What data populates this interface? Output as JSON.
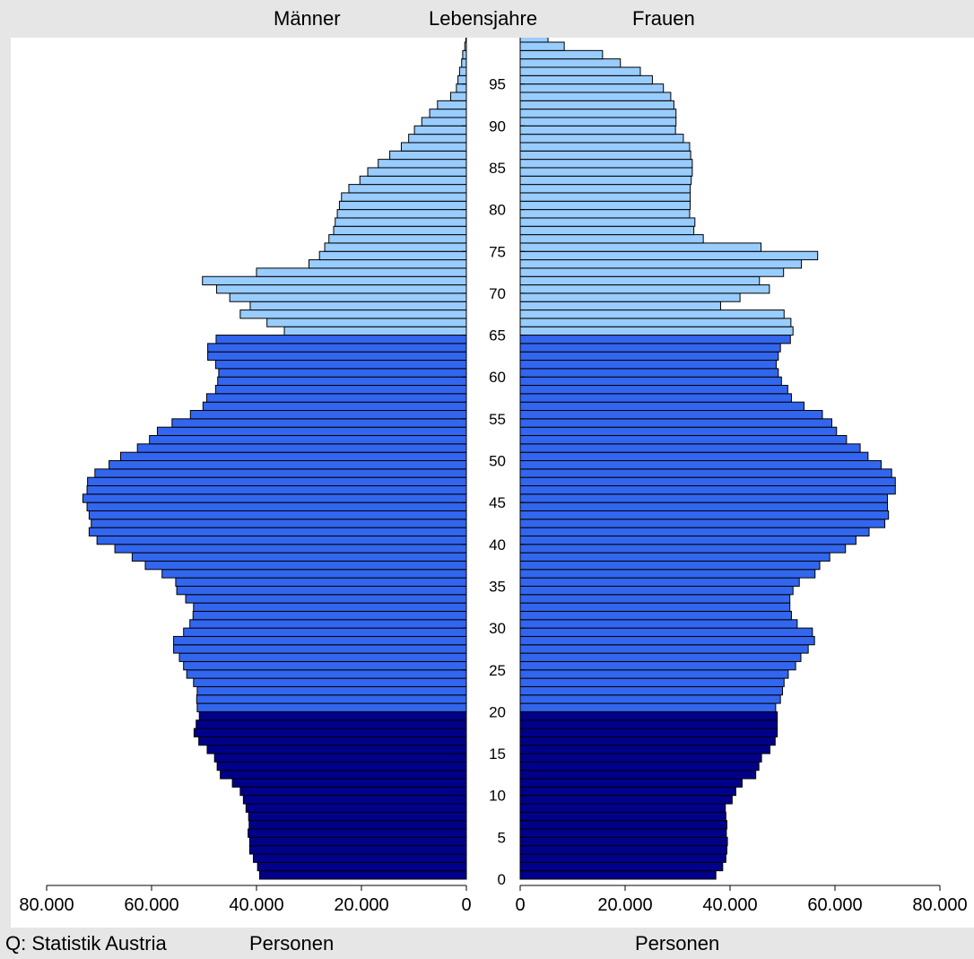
{
  "header": {
    "men": "Männer",
    "age": "Lebensjahre",
    "women": "Frauen"
  },
  "footer": {
    "source": "Q: Statistik Austria",
    "left_unit": "Personen",
    "right_unit": "Personen"
  },
  "colors": {
    "age_0_19": "#00008b",
    "age_20_64": "#3366ee",
    "age_65_plus": "#99ccff",
    "outline": "#000000"
  },
  "chart_data": {
    "type": "bar",
    "orientation": "horizontal-pyramid",
    "age_ticks": [
      "0",
      "5",
      "10",
      "15",
      "20",
      "25",
      "30",
      "35",
      "40",
      "45",
      "50",
      "55",
      "60",
      "65",
      "70",
      "75",
      "80",
      "85",
      "90",
      "95"
    ],
    "x_ticks_left": [
      "80.000",
      "60.000",
      "40.000",
      "20.000",
      "0"
    ],
    "x_ticks_right": [
      "0",
      "20.000",
      "40.000",
      "60.000",
      "80.000"
    ],
    "xlim": [
      0,
      80000
    ],
    "ylim": [
      0,
      100
    ],
    "age_groups": [
      {
        "from": 0,
        "to": 19,
        "color": "#00008b"
      },
      {
        "from": 20,
        "to": 64,
        "color": "#3366ee"
      },
      {
        "from": 65,
        "to": 100,
        "color": "#99ccff"
      }
    ],
    "ages": [
      0,
      1,
      2,
      3,
      4,
      5,
      6,
      7,
      8,
      9,
      10,
      11,
      12,
      13,
      14,
      15,
      16,
      17,
      18,
      19,
      20,
      21,
      22,
      23,
      24,
      25,
      26,
      27,
      28,
      29,
      30,
      31,
      32,
      33,
      34,
      35,
      36,
      37,
      38,
      39,
      40,
      41,
      42,
      43,
      44,
      45,
      46,
      47,
      48,
      49,
      50,
      51,
      52,
      53,
      54,
      55,
      56,
      57,
      58,
      59,
      60,
      61,
      62,
      63,
      64,
      65,
      66,
      67,
      68,
      69,
      70,
      71,
      72,
      73,
      74,
      75,
      76,
      77,
      78,
      79,
      80,
      81,
      82,
      83,
      84,
      85,
      86,
      87,
      88,
      89,
      90,
      91,
      92,
      93,
      94,
      95,
      96,
      97,
      98,
      99,
      100
    ],
    "series": [
      {
        "name": "Männer",
        "values": [
          39400,
          39800,
          40600,
          41300,
          41300,
          41600,
          41400,
          41500,
          42000,
          42500,
          43100,
          44600,
          46900,
          47500,
          48000,
          49400,
          51000,
          51900,
          51500,
          50900,
          51300,
          51400,
          51300,
          52000,
          53300,
          53900,
          54700,
          55800,
          55800,
          53900,
          52700,
          52100,
          52000,
          53500,
          55200,
          55400,
          58000,
          61200,
          63700,
          67000,
          70400,
          71900,
          71500,
          71900,
          72300,
          73100,
          72300,
          72200,
          70800,
          68100,
          65900,
          62700,
          60400,
          58900,
          56100,
          52600,
          50200,
          49500,
          47800,
          47400,
          47200,
          47800,
          49300,
          49300,
          47700,
          34700,
          38000,
          43100,
          41200,
          45100,
          47600,
          50300,
          40000,
          30000,
          28000,
          27000,
          26200,
          25300,
          25000,
          24600,
          24200,
          23800,
          22400,
          20300,
          18800,
          16800,
          14600,
          12400,
          11000,
          9900,
          8500,
          7000,
          5500,
          3000,
          1900,
          1600,
          1300,
          900,
          700,
          300,
          100
        ]
      },
      {
        "name": "Frauen",
        "values": [
          37300,
          38600,
          39200,
          39400,
          39500,
          39300,
          39400,
          39200,
          39100,
          40400,
          41100,
          42300,
          44900,
          45500,
          46000,
          47600,
          48600,
          49000,
          49000,
          49000,
          48700,
          49600,
          50000,
          50300,
          51100,
          52500,
          53500,
          54900,
          56100,
          55700,
          52800,
          51700,
          51400,
          51400,
          52000,
          53200,
          56200,
          57100,
          59000,
          62000,
          64000,
          66500,
          69500,
          70200,
          70000,
          70000,
          71500,
          71500,
          70800,
          68800,
          66300,
          64800,
          62200,
          60300,
          59400,
          57600,
          54100,
          51700,
          51000,
          49800,
          49200,
          48800,
          49200,
          49600,
          51500,
          52000,
          51600,
          50300,
          38200,
          41900,
          47500,
          45600,
          50200,
          53600,
          56700,
          45900,
          34900,
          33100,
          33300,
          32300,
          32400,
          32400,
          32400,
          32600,
          32800,
          32800,
          32500,
          32300,
          31100,
          29600,
          29700,
          29700,
          29300,
          28700,
          27300,
          25200,
          22900,
          19100,
          15700,
          8400,
          5300
        ]
      }
    ]
  }
}
